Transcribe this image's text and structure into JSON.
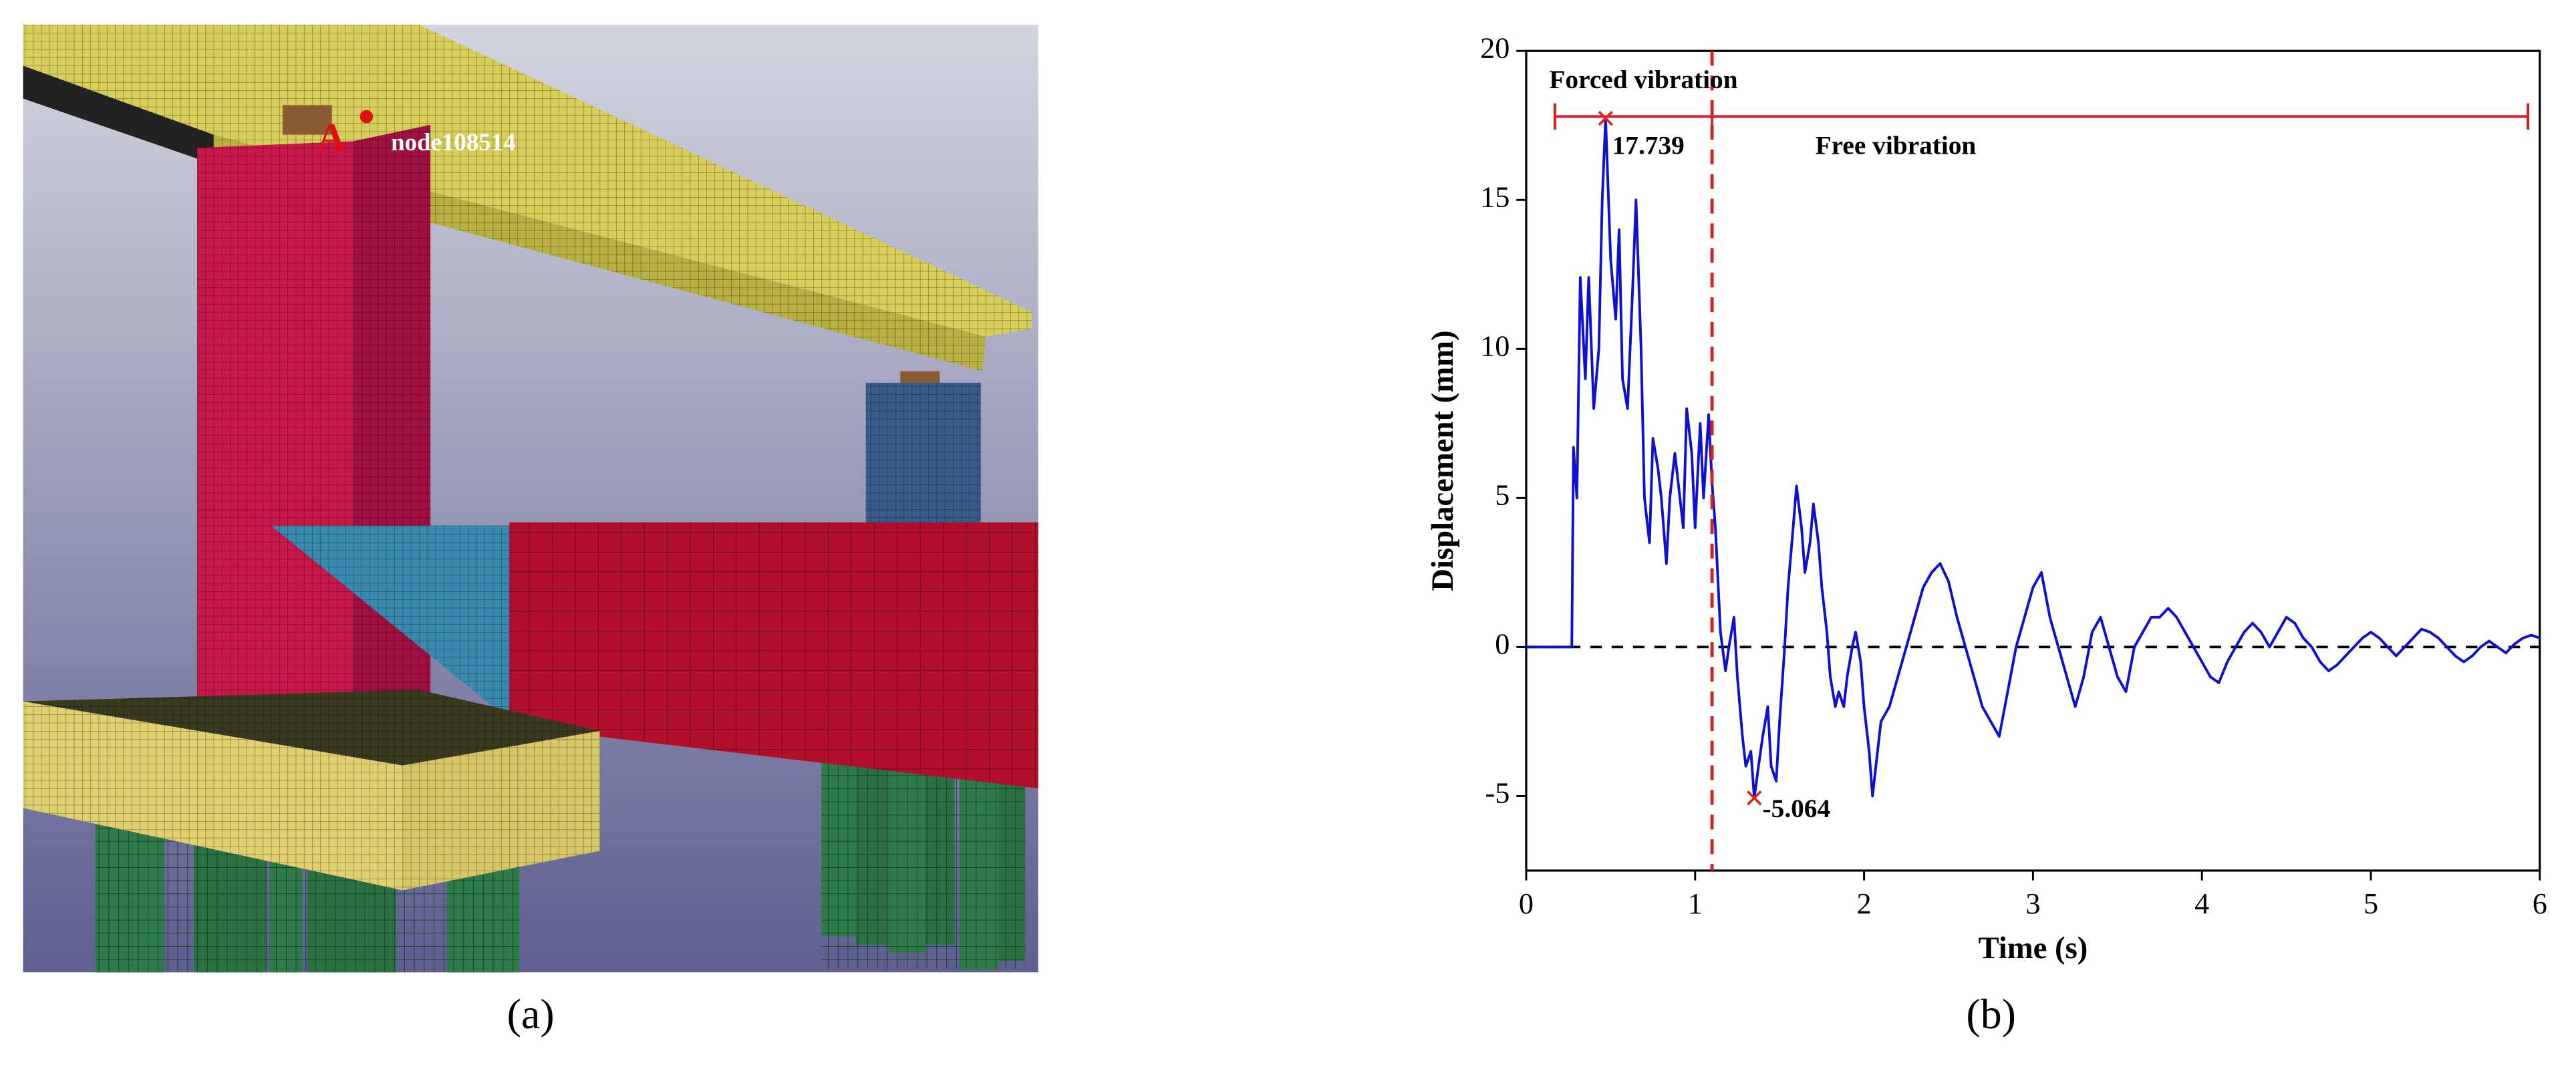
{
  "figure": {
    "panel_a": {
      "label": "(a)",
      "point_label": "A",
      "node_label": "node108514"
    },
    "panel_b_label": "(b)"
  },
  "chart_data": {
    "type": "line",
    "x_label": "Time (s)",
    "y_label": "Displacement (mm)",
    "xlim": [
      0,
      6
    ],
    "xticks": [
      0,
      1,
      2,
      3,
      4,
      5,
      6
    ],
    "ylim": [
      -7.5,
      20
    ],
    "yticks": [
      -5,
      0,
      5,
      10,
      15,
      20
    ],
    "color": "#1010d0",
    "x": [
      0,
      0.1,
      0.2,
      0.25,
      0.27,
      0.28,
      0.3,
      0.32,
      0.35,
      0.37,
      0.4,
      0.43,
      0.45,
      0.47,
      0.5,
      0.53,
      0.55,
      0.57,
      0.6,
      0.63,
      0.65,
      0.68,
      0.7,
      0.73,
      0.75,
      0.78,
      0.8,
      0.83,
      0.85,
      0.88,
      0.9,
      0.93,
      0.95,
      0.98,
      1.0,
      1.03,
      1.05,
      1.08,
      1.1,
      1.12,
      1.15,
      1.18,
      1.2,
      1.23,
      1.25,
      1.28,
      1.3,
      1.33,
      1.35,
      1.38,
      1.4,
      1.43,
      1.45,
      1.48,
      1.5,
      1.53,
      1.55,
      1.58,
      1.6,
      1.63,
      1.65,
      1.68,
      1.7,
      1.73,
      1.75,
      1.78,
      1.8,
      1.83,
      1.85,
      1.88,
      1.9,
      1.93,
      1.95,
      1.98,
      2.0,
      2.03,
      2.05,
      2.08,
      2.1,
      2.15,
      2.2,
      2.25,
      2.3,
      2.35,
      2.4,
      2.45,
      2.5,
      2.55,
      2.6,
      2.65,
      2.7,
      2.75,
      2.8,
      2.85,
      2.9,
      2.95,
      3.0,
      3.05,
      3.1,
      3.15,
      3.2,
      3.25,
      3.3,
      3.35,
      3.4,
      3.45,
      3.5,
      3.55,
      3.6,
      3.65,
      3.7,
      3.75,
      3.8,
      3.85,
      3.9,
      3.95,
      4.0,
      4.05,
      4.1,
      4.15,
      4.2,
      4.25,
      4.3,
      4.35,
      4.4,
      4.45,
      4.5,
      4.55,
      4.6,
      4.65,
      4.7,
      4.75,
      4.8,
      4.85,
      4.9,
      4.95,
      5.0,
      5.05,
      5.1,
      5.15,
      5.2,
      5.25,
      5.3,
      5.35,
      5.4,
      5.45,
      5.5,
      5.55,
      5.6,
      5.65,
      5.7,
      5.75,
      5.8,
      5.85,
      5.9,
      5.95,
      6.0
    ],
    "values": [
      0,
      0,
      0,
      0,
      0,
      6.7,
      5,
      12.4,
      9,
      12.4,
      8,
      10,
      15,
      17.739,
      13,
      11,
      14,
      9,
      8,
      12,
      15,
      10,
      5,
      3.5,
      7,
      6,
      5,
      2.8,
      5,
      6.5,
      5.5,
      4,
      8,
      6.5,
      4,
      7.5,
      5,
      7.8,
      5.5,
      4,
      0.5,
      -0.8,
      0,
      1,
      -1,
      -3,
      -4,
      -3.5,
      -5.064,
      -3.8,
      -3,
      -2,
      -4,
      -4.5,
      -2.5,
      0,
      2,
      4,
      5.4,
      4,
      2.5,
      3.5,
      4.8,
      3.5,
      2,
      0.5,
      -1,
      -2,
      -1.5,
      -2,
      -1,
      0,
      0.5,
      -0.5,
      -2,
      -3.5,
      -5,
      -3.5,
      -2.5,
      -2,
      -1,
      0,
      1,
      2,
      2.5,
      2.8,
      2.2,
      1,
      0,
      -1,
      -2,
      -2.5,
      -3,
      -1.5,
      0,
      1,
      2,
      2.5,
      1,
      0,
      -1,
      -2,
      -1,
      0.5,
      1,
      0,
      -1,
      -1.5,
      0,
      0.5,
      1,
      1,
      1.3,
      1,
      0.5,
      0,
      -0.5,
      -1,
      -1.2,
      -0.5,
      0,
      0.5,
      0.8,
      0.5,
      0,
      0.5,
      1,
      0.8,
      0.3,
      0,
      -0.5,
      -0.8,
      -0.6,
      -0.3,
      0,
      0.3,
      0.5,
      0.3,
      0,
      -0.3,
      0,
      0.3,
      0.6,
      0.5,
      0.3,
      0,
      -0.3,
      -0.5,
      -0.3,
      0,
      0.2,
      0,
      -0.2,
      0.1,
      0.3,
      0.4,
      0.3
    ],
    "reference_y": 0,
    "divider_x": 1.1,
    "phase_bar": {
      "y": 17.8,
      "x": [
        0.17,
        1.1,
        5.93
      ],
      "color": "#d02020"
    },
    "markers": [
      {
        "x": 0.47,
        "y": 17.739,
        "label": "17.739"
      },
      {
        "x": 1.35,
        "y": -5.064,
        "label": "-5.064"
      }
    ],
    "annotations": [
      "Forced vibration",
      "Free vibration"
    ]
  }
}
